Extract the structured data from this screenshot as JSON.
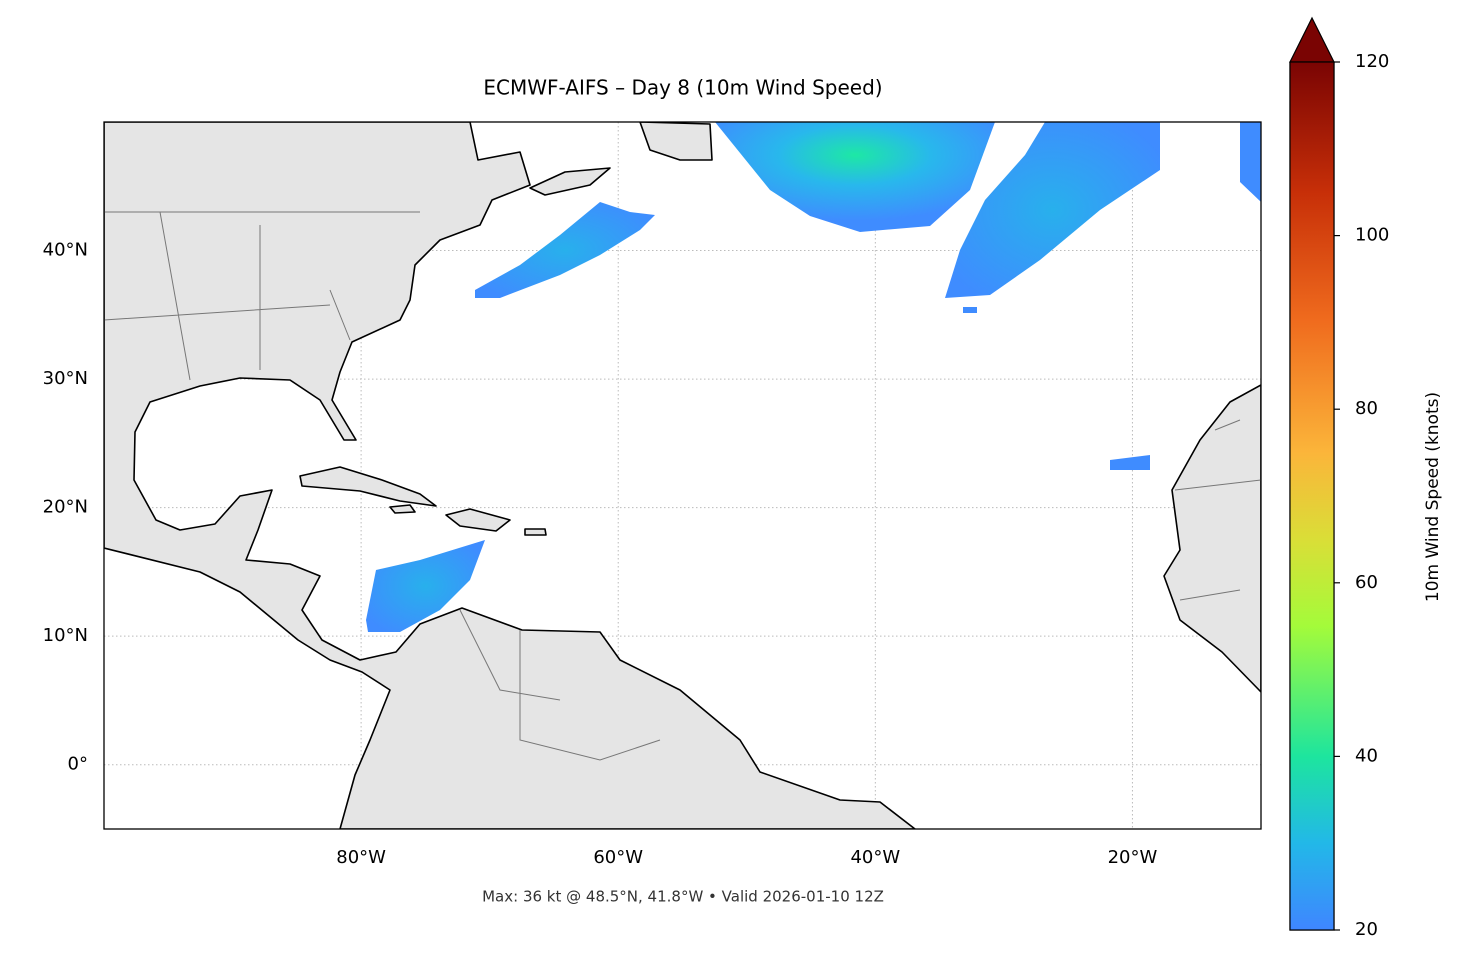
{
  "map": {
    "title": "ECMWF-AIFS – Day 8 (10m Wind Speed)",
    "note": "Max: 36 kt @ 48.5°N, 41.8°W • Valid 2026-01-10 12Z",
    "lonlim": [
      -100,
      -10
    ],
    "latlim": [
      -5,
      50
    ],
    "xticks": [
      {
        "value": -80,
        "label": "80°W"
      },
      {
        "value": -60,
        "label": "60°W"
      },
      {
        "value": -40,
        "label": "40°W"
      },
      {
        "value": -20,
        "label": "20°W"
      }
    ],
    "yticks": [
      {
        "value": 0,
        "label": "0°"
      },
      {
        "value": 10,
        "label": "10°N"
      },
      {
        "value": 20,
        "label": "20°N"
      },
      {
        "value": 30,
        "label": "30°N"
      },
      {
        "value": 40,
        "label": "40°N"
      }
    ],
    "colorbar": {
      "label": "10m Wind Speed (knots)",
      "lim": [
        20,
        120
      ],
      "ticks": [
        20,
        40,
        60,
        80,
        100,
        120
      ]
    }
  }
}
